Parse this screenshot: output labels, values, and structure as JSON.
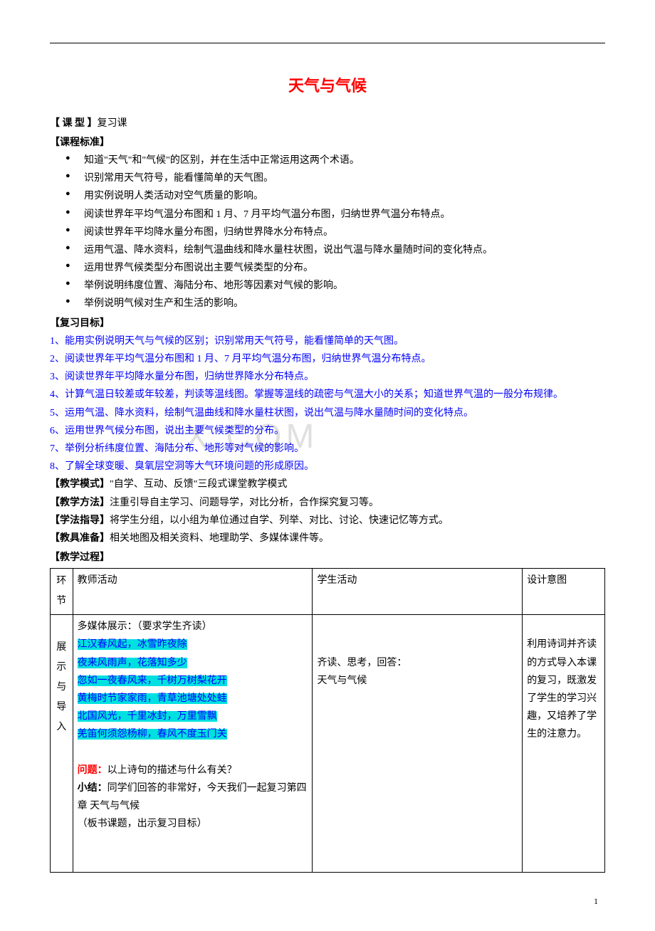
{
  "title": "天气与气候",
  "lessonTypeLabel": "【 课   型 】",
  "lessonTypeValue": "复习课",
  "standardsHeader": "【课程标准】",
  "standards": [
    "知道\"天气\"和\"气候\"的区别，并在生活中正常运用这两个术语。",
    "识别常用天气符号，能看懂简单的天气图。",
    "用实例说明人类活动对空气质量的影响。",
    "阅读世界年平均气温分布图和 1 月、7 月平均气温分布图，归纳世界气温分布特点。",
    "阅读世界年平均降水量分布图，归纳世界降水分布特点。",
    "运用气温、降水资料，绘制气温曲线和降水量柱状图，说出气温与降水量随时间的变化特点。",
    "运用世界气候类型分布图说出主要气候类型的分布。",
    "举例说明纬度位置、海陆分布、地形等因素对气候的影响。",
    "举例说明气候对生产和生活的影响。"
  ],
  "reviewGoalsHeader": "【复习目标】",
  "reviewGoals": [
    "1、能用实例说明天气与气候的区别；识别常用天气符号，能看懂简单的天气图。",
    "2、阅读世界年平均气温分布图和 1 月、7 月平均气温分布图，归纳世界气温分布特点。",
    "3、阅读世界年平均降水量分布图，归纳世界降水分布特点。",
    "4、计算气温日较差或年较差，判读等温线图。掌握等温线的疏密与气温大小的关系；知道世界气温的一般分布规律。",
    "5、运用气温、降水资料，绘制气温曲线和降水量柱状图，说出气温与降水量随时间的变化特点。",
    "6、运用世界气候分布图，说出主要气候类型的分布。",
    "7、举例分析纬度位置、海陆分布、地形等对气候的影响。",
    "8、了解全球变暖、臭氧层空洞等大气环境问题的形成原因。"
  ],
  "watermark": "X.COM",
  "modeLabel": "【教学模式】",
  "modeValue": "\"自学、互动、反馈\"三段式课堂教学模式",
  "methodLabel": "【教学方法】",
  "methodValue": "注重引导自主学习、问题导学，对比分析，合作探究复习等。",
  "guideLabel": "【学法指导】",
  "guideValue": "将学生分组，以小组为单位通过自学、列举、对比、讨论、快速记忆等方式。",
  "prepLabel": "【教具准备】",
  "prepValue": "相关地图及相关资料、地理助学、多媒体课件等。",
  "processHeader": "【教学过程】",
  "table": {
    "headers": [
      "环节",
      "教师活动",
      "学生活动",
      "设计意图"
    ],
    "row": {
      "phase": "展示与导入",
      "teacherIntro": "多媒体展示：（要求学生齐读）",
      "poems": [
        "江汉春风起，冰雪昨夜除",
        "夜来风雨声，花落知多少",
        "忽如一夜春风来，千树万树梨花开",
        "黄梅时节家家雨，青草池塘处处蛙",
        "北国风光，千里冰封，万里雪飘",
        "羌笛何须怨杨柳，春风不度玉门关"
      ],
      "questionLabel": "问题：",
      "questionText": "以上诗句的描述与什么有关？",
      "summaryLabel": "小结：",
      "summaryText": "同学们回答的非常好，今天我们一起复习第四章  天气与气候",
      "boardNote": "（板书课题，出示复习目标）",
      "studentLines": [
        "齐读、思考，回答：",
        "天气与气候"
      ],
      "intent": "利用诗词并齐读的方式导入本课的复习，既激发了学生的学习兴趣，又培养了学生的注意力。"
    }
  },
  "pageNumber": "1"
}
